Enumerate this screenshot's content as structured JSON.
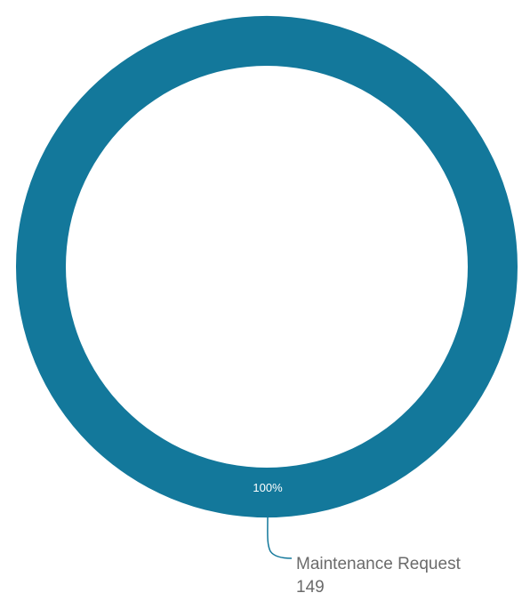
{
  "chart_data": {
    "type": "pie",
    "donut": true,
    "colors": [
      "#13789b"
    ],
    "slices": [
      {
        "name": "Maintenance Request",
        "value": 149,
        "percent_label": "100%",
        "value_label": "149",
        "color": "#13789b"
      }
    ]
  }
}
